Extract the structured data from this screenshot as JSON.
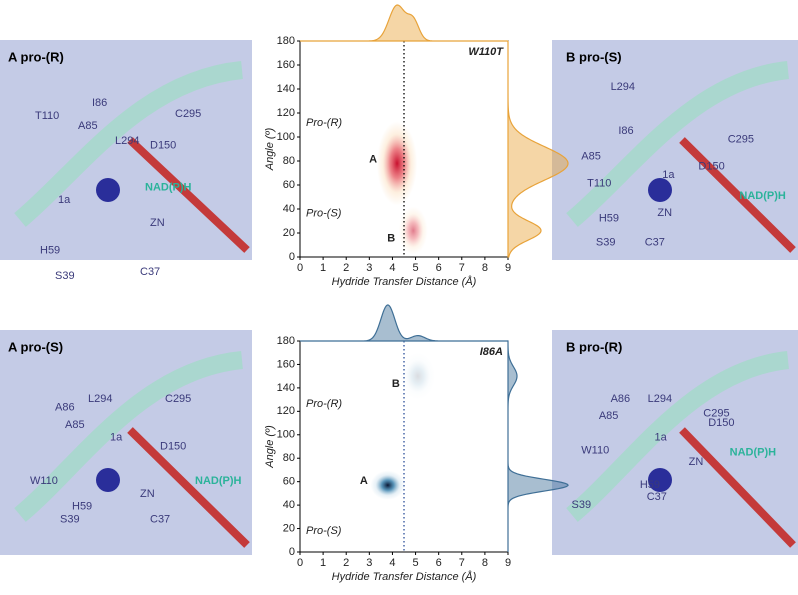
{
  "chart_data": [
    {
      "type": "kde2d",
      "title": "W110T",
      "xlabel": "Hydride Transfer Distance (Å)",
      "ylabel": "Angle (º)",
      "xlim": [
        0,
        9
      ],
      "ylim": [
        0,
        180
      ],
      "xticks": [
        0,
        1,
        2,
        3,
        4,
        5,
        6,
        7,
        8,
        9
      ],
      "yticks": [
        0,
        20,
        40,
        60,
        80,
        100,
        120,
        140,
        160,
        180
      ],
      "cutoff": 4.5,
      "color": "#e8a33a",
      "density_colors": [
        "#fbe0c0",
        "#e8636a",
        "#c8102e"
      ],
      "peaks": [
        {
          "label": "A",
          "x": 4.2,
          "y": 78,
          "sx": 0.35,
          "sy": 14,
          "w": 1
        },
        {
          "label": "B",
          "x": 4.9,
          "y": 22,
          "sx": 0.25,
          "sy": 8,
          "w": 0.55
        }
      ],
      "annotations": [
        "Pro-(R)",
        "Pro-(S)"
      ]
    },
    {
      "type": "kde2d",
      "title": "I86A",
      "xlabel": "Hydride Transfer Distance (Å)",
      "ylabel": "Angle (º)",
      "xlim": [
        0,
        9
      ],
      "ylim": [
        0,
        180
      ],
      "xticks": [
        0,
        1,
        2,
        3,
        4,
        5,
        6,
        7,
        8,
        9
      ],
      "yticks": [
        0,
        20,
        40,
        60,
        80,
        100,
        120,
        140,
        160,
        180
      ],
      "cutoff": 4.5,
      "color": "#3f6f96",
      "density_colors": [
        "#cfe2ee",
        "#2f7aa8",
        "#081633"
      ],
      "peaks": [
        {
          "label": "A",
          "x": 3.8,
          "y": 57,
          "sx": 0.3,
          "sy": 5,
          "w": 1
        },
        {
          "label": "B",
          "x": 5.1,
          "y": 150,
          "sx": 0.3,
          "sy": 8,
          "w": 0.15
        }
      ],
      "annotations": [
        "Pro-(R)",
        "Pro-(S)"
      ]
    }
  ],
  "panels": [
    {
      "title": "A pro-(R)",
      "labels": [
        "I86",
        "A85",
        "C295",
        "D150",
        "T110",
        "L294",
        "1a",
        "NAD(P)H",
        "ZN",
        "H59",
        "S39",
        "C37"
      ]
    },
    {
      "title": "B pro-(S)",
      "labels": [
        "L294",
        "I86",
        "A85",
        "C295",
        "D150",
        "1a",
        "NAD(P)H",
        "T110",
        "H59",
        "ZN",
        "S39",
        "C37"
      ]
    },
    {
      "title": "A pro-(S)",
      "labels": [
        "A86",
        "L294",
        "C295",
        "A85",
        "1a",
        "D150",
        "W110",
        "NAD(P)H",
        "ZN",
        "H59",
        "S39",
        "C37"
      ]
    },
    {
      "title": "B pro-(R)",
      "labels": [
        "A86",
        "L294",
        "A85",
        "C295",
        "D150",
        "W110",
        "1a",
        "ZN",
        "NAD(P)H",
        "H59",
        "C37",
        "S39"
      ]
    }
  ]
}
